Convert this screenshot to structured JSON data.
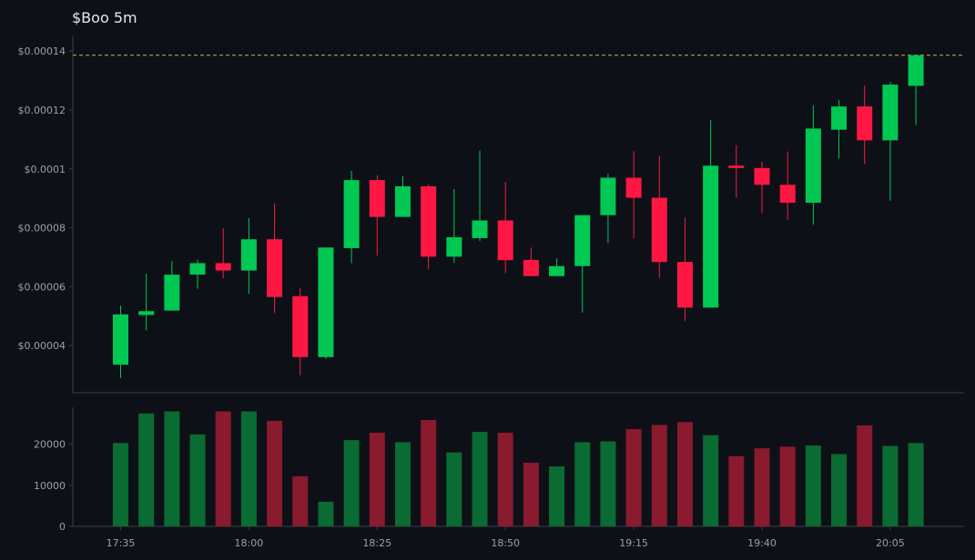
{
  "title": "$Boo 5m",
  "colors": {
    "background": "#0d1017",
    "up": "#00c853",
    "down": "#ff1744",
    "up_volume": "#0a6b33",
    "down_volume": "#8a1a2e",
    "reference_line": "#d4b83a"
  },
  "chart_data": [
    {
      "type": "candlestick",
      "name": "price",
      "y_ticks": [
        4e-05,
        6e-05,
        8e-05,
        0.0001,
        0.00012,
        0.00014
      ],
      "y_tick_labels": [
        "$0.00004",
        "$0.00006",
        "$0.00008",
        "$0.0001",
        "$0.00012",
        "$0.00014"
      ],
      "ylim": [
        2.4e-05,
        0.000145
      ],
      "reference_line": 0.0001386,
      "grid": false,
      "candles": [
        {
          "o": 3.35e-05,
          "h": 5.36e-05,
          "l": 2.9e-05,
          "c": 5.06e-05
        },
        {
          "o": 5.04e-05,
          "h": 6.44e-05,
          "l": 4.52e-05,
          "c": 5.17e-05
        },
        {
          "o": 5.19e-05,
          "h": 6.87e-05,
          "l": 5.19e-05,
          "c": 6.41e-05
        },
        {
          "o": 6.41e-05,
          "h": 6.92e-05,
          "l": 5.93e-05,
          "c": 6.8e-05
        },
        {
          "o": 6.8e-05,
          "h": 7.98e-05,
          "l": 6.28e-05,
          "c": 6.55e-05
        },
        {
          "o": 6.55e-05,
          "h": 8.33e-05,
          "l": 5.76e-05,
          "c": 7.61e-05
        },
        {
          "o": 7.61e-05,
          "h": 8.83e-05,
          "l": 5.11e-05,
          "c": 5.65e-05
        },
        {
          "o": 5.68e-05,
          "h": 5.96e-05,
          "l": 2.99e-05,
          "c": 3.61e-05
        },
        {
          "o": 3.61e-05,
          "h": 7.33e-05,
          "l": 3.54e-05,
          "c": 7.33e-05
        },
        {
          "o": 7.31e-05,
          "h": 9.93e-05,
          "l": 6.8e-05,
          "c": 9.62e-05
        },
        {
          "o": 9.62e-05,
          "h": 9.78e-05,
          "l": 7.06e-05,
          "c": 8.37e-05
        },
        {
          "o": 8.37e-05,
          "h": 9.76e-05,
          "l": 8.37e-05,
          "c": 9.41e-05
        },
        {
          "o": 9.41e-05,
          "h": 9.48e-05,
          "l": 6.6e-05,
          "c": 7.02e-05
        },
        {
          "o": 7.02e-05,
          "h": 9.31e-05,
          "l": 6.81e-05,
          "c": 7.68e-05
        },
        {
          "o": 7.65e-05,
          "h": 0.0001062,
          "l": 7.55e-05,
          "c": 8.25e-05
        },
        {
          "o": 8.25e-05,
          "h": 9.56e-05,
          "l": 6.46e-05,
          "c": 6.9e-05
        },
        {
          "o": 6.91e-05,
          "h": 7.33e-05,
          "l": 6.36e-05,
          "c": 6.36e-05
        },
        {
          "o": 6.36e-05,
          "h": 6.96e-05,
          "l": 6.36e-05,
          "c": 6.7e-05
        },
        {
          "o": 6.7e-05,
          "h": 8.43e-05,
          "l": 5.12e-05,
          "c": 8.43e-05
        },
        {
          "o": 8.43e-05,
          "h": 9.83e-05,
          "l": 7.48e-05,
          "c": 9.7e-05
        },
        {
          "o": 9.7e-05,
          "h": 0.000106,
          "l": 7.64e-05,
          "c": 9.02e-05
        },
        {
          "o": 9.02e-05,
          "h": 0.0001044,
          "l": 6.3e-05,
          "c": 6.84e-05
        },
        {
          "o": 6.84e-05,
          "h": 8.35e-05,
          "l": 4.84e-05,
          "c": 5.29e-05
        },
        {
          "o": 5.29e-05,
          "h": 0.0001166,
          "l": 5.29e-05,
          "c": 0.0001011
        },
        {
          "o": 0.0001011,
          "h": 0.000108,
          "l": 9.01e-05,
          "c": 0.0001003
        },
        {
          "o": 0.0001003,
          "h": 0.0001024,
          "l": 8.5e-05,
          "c": 9.46e-05
        },
        {
          "o": 9.46e-05,
          "h": 0.0001059,
          "l": 8.26e-05,
          "c": 8.85e-05
        },
        {
          "o": 8.85e-05,
          "h": 0.0001216,
          "l": 8.11e-05,
          "c": 0.0001137
        },
        {
          "o": 0.0001133,
          "h": 0.0001234,
          "l": 0.0001035,
          "c": 0.0001212
        },
        {
          "o": 0.0001212,
          "h": 0.0001282,
          "l": 0.0001017,
          "c": 0.0001097
        },
        {
          "o": 0.0001097,
          "h": 0.0001295,
          "l": 8.92e-05,
          "c": 0.0001286
        },
        {
          "o": 0.0001282,
          "h": 0.0001386,
          "l": 0.0001149,
          "c": 0.0001386
        }
      ]
    },
    {
      "type": "bar",
      "name": "volume",
      "x_tick_labels": [
        "17:35",
        "18:00",
        "18:25",
        "18:50",
        "19:15",
        "19:40",
        "20:05"
      ],
      "x_tick_positions": [
        0,
        5,
        10,
        15,
        20,
        25,
        30
      ],
      "y_ticks": [
        0,
        10000,
        20000
      ],
      "y_tick_labels": [
        "0",
        "10000",
        "20000"
      ],
      "ylim": [
        0,
        29000
      ],
      "grid": false,
      "values": [
        20300,
        27500,
        28000,
        22400,
        28000,
        28000,
        25700,
        12200,
        6000,
        21000,
        22800,
        20500,
        25900,
        18000,
        23000,
        22800,
        15500,
        14600,
        20500,
        20700,
        23700,
        24700,
        25400,
        22200,
        17100,
        19000,
        19400,
        19700,
        17600,
        24600,
        19600,
        20300
      ]
    }
  ]
}
